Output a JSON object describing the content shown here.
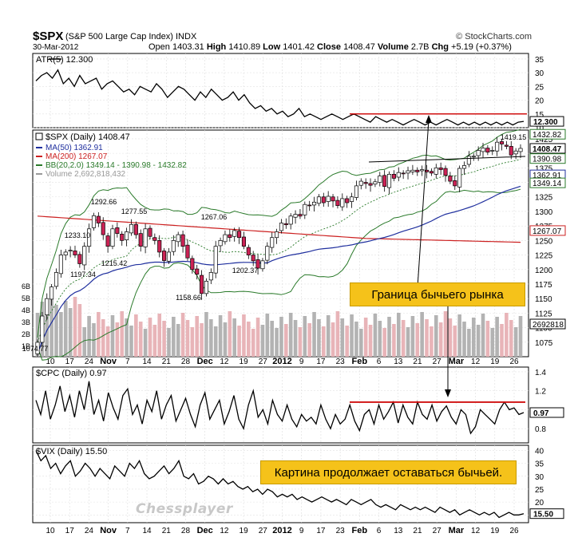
{
  "header": {
    "symbol": "$SPX",
    "description": "(S&P 500 Large Cap Index) INDX",
    "date": "30-Mar-2012",
    "brand": "© StockCharts.com",
    "open_label": "Open",
    "open": "1403.31",
    "high_label": "High",
    "high": "1410.89",
    "low_label": "Low",
    "low": "1401.42",
    "close_label": "Close",
    "close": "1408.47",
    "volume_label": "Volume",
    "volume": "2.7B",
    "chg_label": "Chg",
    "chg": "+5.19 (+0.37%)"
  },
  "annotations": {
    "bull_market_boundary": "Граница бычьего рынка",
    "still_bullish": "Картина продолжает оставаться бычьей.",
    "watermark": "Chessplayer"
  },
  "x_axis": {
    "labels_top": [
      "10",
      "17",
      "24",
      "Nov",
      "7",
      "14",
      "21",
      "28",
      "Dec",
      "12",
      "19",
      "27",
      "2012",
      "9",
      "17",
      "23",
      "Feb",
      "6",
      "13",
      "21",
      "27",
      "Mar",
      "12",
      "19",
      "26"
    ],
    "labels_bottom": [
      "10",
      "17",
      "24",
      "Nov",
      "7",
      "14",
      "21",
      "28",
      "Dec",
      "12",
      "19",
      "27",
      "2012",
      "9",
      "17",
      "23",
      "Feb",
      "6",
      "13",
      "21",
      "27",
      "Mar",
      "12",
      "19",
      "26"
    ]
  },
  "chart_data": [
    {
      "type": "line",
      "title": "ATR(5) 12.300",
      "series": [
        {
          "name": "ATR(5) 12.300",
          "values": [
            27,
            29,
            30,
            28,
            31,
            26,
            28,
            25,
            29,
            26,
            27,
            28,
            24,
            26,
            27,
            25,
            23,
            24,
            22,
            25,
            24,
            23,
            26,
            24,
            21,
            23,
            25,
            24,
            22,
            20,
            23,
            21,
            24,
            22,
            20,
            21,
            23,
            20,
            22,
            19,
            17,
            18,
            16,
            17,
            15,
            16,
            14,
            15,
            17,
            14,
            15,
            14,
            13,
            14,
            15,
            14,
            13,
            14,
            15,
            14,
            13,
            12,
            14,
            13,
            12,
            13,
            12,
            11,
            12,
            13,
            12,
            11,
            12,
            11,
            12,
            13,
            12,
            11,
            12,
            11,
            12,
            11,
            12,
            11,
            12,
            11,
            12,
            11,
            12,
            12.3
          ]
        }
      ],
      "ylim": [
        10,
        37
      ],
      "yticks": [
        "35",
        "30",
        "25",
        "20",
        "15",
        "10"
      ],
      "last_value": "12.300",
      "reference_level": 15
    },
    {
      "type": "candlestick",
      "title": "$SPX (Daily) 1408.47",
      "legend": [
        {
          "name": "MA(50) 1362.91",
          "color": "#1f2f9e"
        },
        {
          "name": "MA(200) 1267.07",
          "color": "#cc2020"
        },
        {
          "name": "BB(20,2.0) 1349.14 - 1390.98 - 1432.82",
          "color": "#2a7a2a"
        },
        {
          "name": "Volume 2,692,818,432",
          "color": "#999999"
        }
      ],
      "close_values": [
        1074.77,
        1120,
        1150,
        1170,
        1195,
        1225,
        1230,
        1233.1,
        1225,
        1210,
        1240,
        1270,
        1292.66,
        1280,
        1260,
        1240,
        1270,
        1262,
        1250,
        1265,
        1277.55,
        1260,
        1240,
        1270,
        1257,
        1250,
        1230,
        1215.42,
        1230,
        1250,
        1260,
        1240,
        1220,
        1200,
        1192,
        1158.66,
        1180,
        1195,
        1240,
        1250,
        1260,
        1255,
        1267.06,
        1255,
        1240,
        1225,
        1215,
        1202.37,
        1215,
        1240,
        1255,
        1265,
        1280,
        1277,
        1292,
        1295,
        1292,
        1312,
        1310,
        1316,
        1325,
        1315,
        1326,
        1318,
        1310,
        1322,
        1315,
        1325,
        1344,
        1352,
        1348,
        1345,
        1351,
        1361,
        1343,
        1364,
        1357,
        1367,
        1365,
        1370,
        1371,
        1368,
        1372,
        1368,
        1366,
        1375,
        1372,
        1362,
        1352,
        1344,
        1374,
        1379,
        1395,
        1395,
        1405,
        1409,
        1402,
        1405,
        1419.15,
        1416,
        1412,
        1397,
        1404,
        1408.47
      ],
      "ylim": [
        1050,
        1440
      ],
      "yticks": [
        "1425",
        "1400",
        "1375",
        "1350",
        "1325",
        "1300",
        "1275",
        "1250",
        "1225",
        "1200",
        "1175",
        "1150",
        "1125",
        "1100",
        "1075"
      ],
      "volume_ticks": [
        "6B",
        "5B",
        "4B",
        "3B",
        "2B",
        "1B"
      ],
      "price_labels": [
        "1292.66",
        "1277.55",
        "1233.10",
        "1215.42",
        "1197.34",
        "1267.06",
        "1202.37",
        "1158.66",
        "1074.77",
        "1419.15"
      ],
      "right_labels": [
        "1432.82",
        "1408.47",
        "1390.98",
        "1362.91",
        "1349.14",
        "1267.07",
        "2692818"
      ],
      "ma50_end": 1362.91,
      "ma200_end": 1267.07,
      "bb_upper": 1432.82,
      "bb_mid": 1390.98,
      "bb_lower": 1349.14,
      "volume_last": 2692818432
    },
    {
      "type": "line",
      "title": "$CPC (Daily) 0.97",
      "series": [
        {
          "name": "$CPC (Daily) 0.97",
          "values": [
            1.1,
            0.95,
            1.2,
            0.9,
            1.05,
            1.25,
            0.98,
            1.15,
            0.92,
            1.2,
            1.0,
            1.3,
            0.95,
            1.1,
            0.88,
            1.18,
            1.02,
            0.9,
            1.15,
            1.22,
            0.95,
            1.05,
            0.85,
            1.1,
            0.98,
            1.2,
            0.9,
            1.05,
            1.15,
            0.88,
            1.0,
            1.12,
            0.95,
            0.82,
            1.05,
            1.18,
            0.9,
            1.0,
            1.1,
            0.85,
            0.98,
            1.15,
            0.9,
            0.8,
            1.05,
            1.2,
            0.92,
            1.0,
            0.85,
            1.1,
            0.95,
            0.88,
            1.05,
            0.9,
            0.82,
            0.95,
            0.88,
            0.92,
            0.85,
            1.05,
            0.9,
            0.8,
            0.95,
            0.85,
            0.9,
            1.05,
            0.88,
            0.78,
            0.95,
            1.0,
            0.85,
            1.05,
            0.9,
            0.98,
            1.08,
            0.86,
            1.05,
            0.92,
            0.85,
            1.08,
            0.95,
            0.9,
            1.05,
            0.88,
            0.98,
            1.04,
            0.92,
            0.85,
            1.0,
            0.95,
            0.75,
            0.82,
            1.0,
            0.95,
            0.9,
            0.85,
            1.0,
            1.08,
            1.0,
            1.02,
            0.95,
            0.97
          ]
        }
      ],
      "ylim": [
        0.65,
        1.45
      ],
      "yticks": [
        "1.4",
        "1.2",
        "1.0",
        "0.8"
      ],
      "last_value": "0.97",
      "reference_level": 1.08
    },
    {
      "type": "line",
      "title": "$VIX (Daily) 15.50",
      "series": [
        {
          "name": "$VIX (Daily) 15.50",
          "values": [
            40,
            36,
            38,
            33,
            35,
            31,
            34,
            36,
            30,
            32,
            35,
            33,
            30,
            33,
            31,
            29,
            34,
            32,
            30,
            35,
            33,
            36,
            31,
            29,
            30,
            32,
            34,
            31,
            33,
            36,
            30,
            29,
            31,
            27,
            28,
            30,
            29,
            27,
            29,
            27,
            28,
            26,
            25,
            26,
            24,
            25,
            23,
            25,
            24,
            22,
            23,
            22,
            23,
            21,
            22,
            21,
            20,
            21,
            22,
            21,
            20,
            21,
            20,
            19,
            21,
            20,
            19,
            20,
            21,
            19,
            18,
            19,
            18,
            17,
            19,
            18,
            17,
            18,
            17,
            18,
            17,
            16,
            18,
            17,
            16,
            17,
            15,
            16,
            17,
            16,
            15,
            16,
            15,
            16,
            14,
            15,
            16,
            15,
            15,
            15.5
          ]
        }
      ],
      "ylim": [
        12,
        42
      ],
      "yticks": [
        "40",
        "35",
        "30",
        "25",
        "20",
        "15"
      ],
      "last_value": "15.50"
    }
  ]
}
